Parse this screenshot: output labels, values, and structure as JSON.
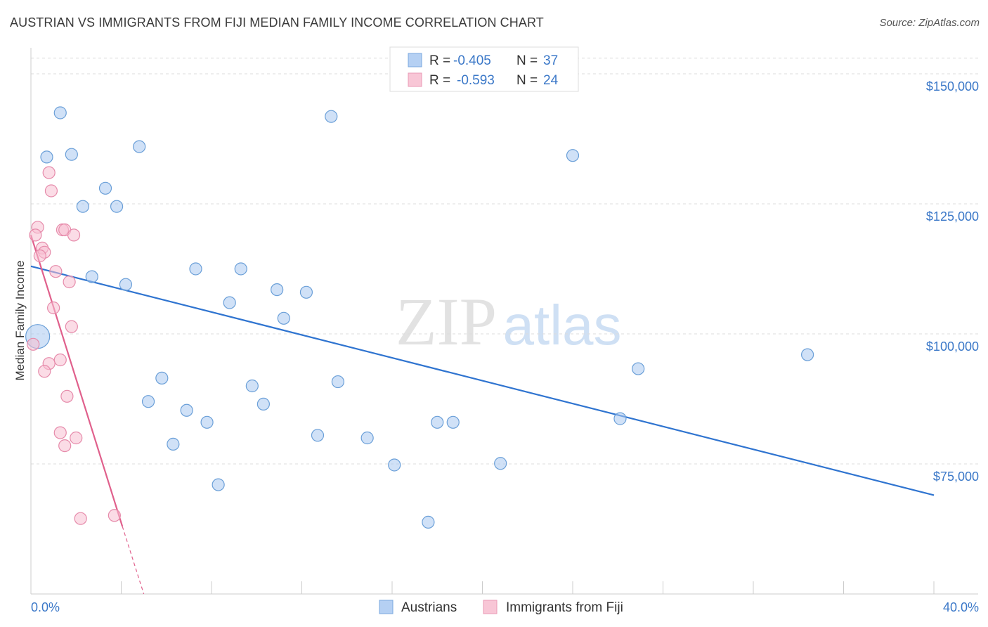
{
  "chart_data": {
    "type": "scatter",
    "title": "AUSTRIAN VS IMMIGRANTS FROM FIJI MEDIAN FAMILY INCOME CORRELATION CHART",
    "source": "Source: ZipAtlas.com",
    "xlabel": "",
    "ylabel": "Median Family Income",
    "xlim": [
      0,
      40
    ],
    "ylim": [
      50000,
      155000
    ],
    "x_tick_labels": [
      "0.0%",
      "40.0%"
    ],
    "y_ticks": [
      75000,
      100000,
      125000,
      150000
    ],
    "y_tick_labels": [
      "$75,000",
      "$100,000",
      "$125,000",
      "$150,000"
    ],
    "watermark": {
      "zip": "ZIP",
      "atlas": "atlas"
    },
    "legend_box": [
      {
        "r_label": "R =",
        "r_value": "-0.405",
        "n_label": "N =",
        "n_value": "37"
      },
      {
        "r_label": "R =",
        "r_value": "-0.593",
        "n_label": "N =",
        "n_value": "24"
      }
    ],
    "series": [
      {
        "name": "Austrians",
        "color": "#a9c8f0",
        "stroke": "#6a9fd8",
        "line_color": "#2f74d0",
        "trend": {
          "x0": 0,
          "y0": 113000,
          "x1": 40,
          "y1": 69000
        },
        "points": [
          {
            "x": 1.3,
            "y": 142500
          },
          {
            "x": 0.7,
            "y": 134000
          },
          {
            "x": 1.8,
            "y": 134500
          },
          {
            "x": 4.8,
            "y": 136000
          },
          {
            "x": 13.3,
            "y": 141800
          },
          {
            "x": 2.3,
            "y": 124500
          },
          {
            "x": 3.3,
            "y": 128000
          },
          {
            "x": 3.8,
            "y": 124500
          },
          {
            "x": 24.0,
            "y": 134300
          },
          {
            "x": 2.7,
            "y": 111000
          },
          {
            "x": 4.2,
            "y": 109500
          },
          {
            "x": 7.3,
            "y": 112500
          },
          {
            "x": 9.3,
            "y": 112500
          },
          {
            "x": 8.8,
            "y": 106000
          },
          {
            "x": 10.9,
            "y": 108500
          },
          {
            "x": 12.2,
            "y": 108000
          },
          {
            "x": 11.2,
            "y": 103000
          },
          {
            "x": 0.3,
            "y": 99500,
            "big": true
          },
          {
            "x": 5.8,
            "y": 91500
          },
          {
            "x": 5.2,
            "y": 87000
          },
          {
            "x": 6.9,
            "y": 85300
          },
          {
            "x": 9.8,
            "y": 90000
          },
          {
            "x": 10.3,
            "y": 86500
          },
          {
            "x": 13.6,
            "y": 90800
          },
          {
            "x": 7.8,
            "y": 83000
          },
          {
            "x": 6.3,
            "y": 78800
          },
          {
            "x": 12.7,
            "y": 80500
          },
          {
            "x": 14.9,
            "y": 80000
          },
          {
            "x": 18.0,
            "y": 83000
          },
          {
            "x": 18.7,
            "y": 83000
          },
          {
            "x": 16.1,
            "y": 74800
          },
          {
            "x": 20.8,
            "y": 75100
          },
          {
            "x": 8.3,
            "y": 71000
          },
          {
            "x": 17.6,
            "y": 63800
          },
          {
            "x": 26.9,
            "y": 93300
          },
          {
            "x": 34.4,
            "y": 96000
          },
          {
            "x": 26.1,
            "y": 83700
          }
        ]
      },
      {
        "name": "Immigrants from Fiji",
        "color": "#f7c0d2",
        "stroke": "#e68aaa",
        "line_color": "#e0608c",
        "trend": {
          "x0": 0,
          "y0": 119000,
          "x1": 4.05,
          "y1": 63000
        },
        "trend_dash": {
          "x0": 4.05,
          "y0": 63000,
          "x1": 5.0,
          "y1": 50000
        },
        "points": [
          {
            "x": 0.8,
            "y": 131000
          },
          {
            "x": 0.9,
            "y": 127500
          },
          {
            "x": 0.3,
            "y": 120500
          },
          {
            "x": 0.2,
            "y": 119000
          },
          {
            "x": 1.4,
            "y": 120000
          },
          {
            "x": 1.5,
            "y": 120000
          },
          {
            "x": 1.9,
            "y": 119000
          },
          {
            "x": 0.5,
            "y": 116500
          },
          {
            "x": 0.6,
            "y": 115700
          },
          {
            "x": 0.4,
            "y": 115000
          },
          {
            "x": 1.1,
            "y": 112000
          },
          {
            "x": 1.7,
            "y": 110000
          },
          {
            "x": 1.0,
            "y": 105000
          },
          {
            "x": 1.8,
            "y": 101400
          },
          {
            "x": 0.1,
            "y": 98000
          },
          {
            "x": 1.3,
            "y": 95000
          },
          {
            "x": 0.8,
            "y": 94300
          },
          {
            "x": 0.6,
            "y": 92800
          },
          {
            "x": 1.6,
            "y": 88000
          },
          {
            "x": 1.3,
            "y": 81000
          },
          {
            "x": 2.0,
            "y": 80000
          },
          {
            "x": 1.5,
            "y": 78500
          },
          {
            "x": 2.2,
            "y": 64500
          },
          {
            "x": 3.7,
            "y": 65100
          }
        ]
      }
    ]
  }
}
